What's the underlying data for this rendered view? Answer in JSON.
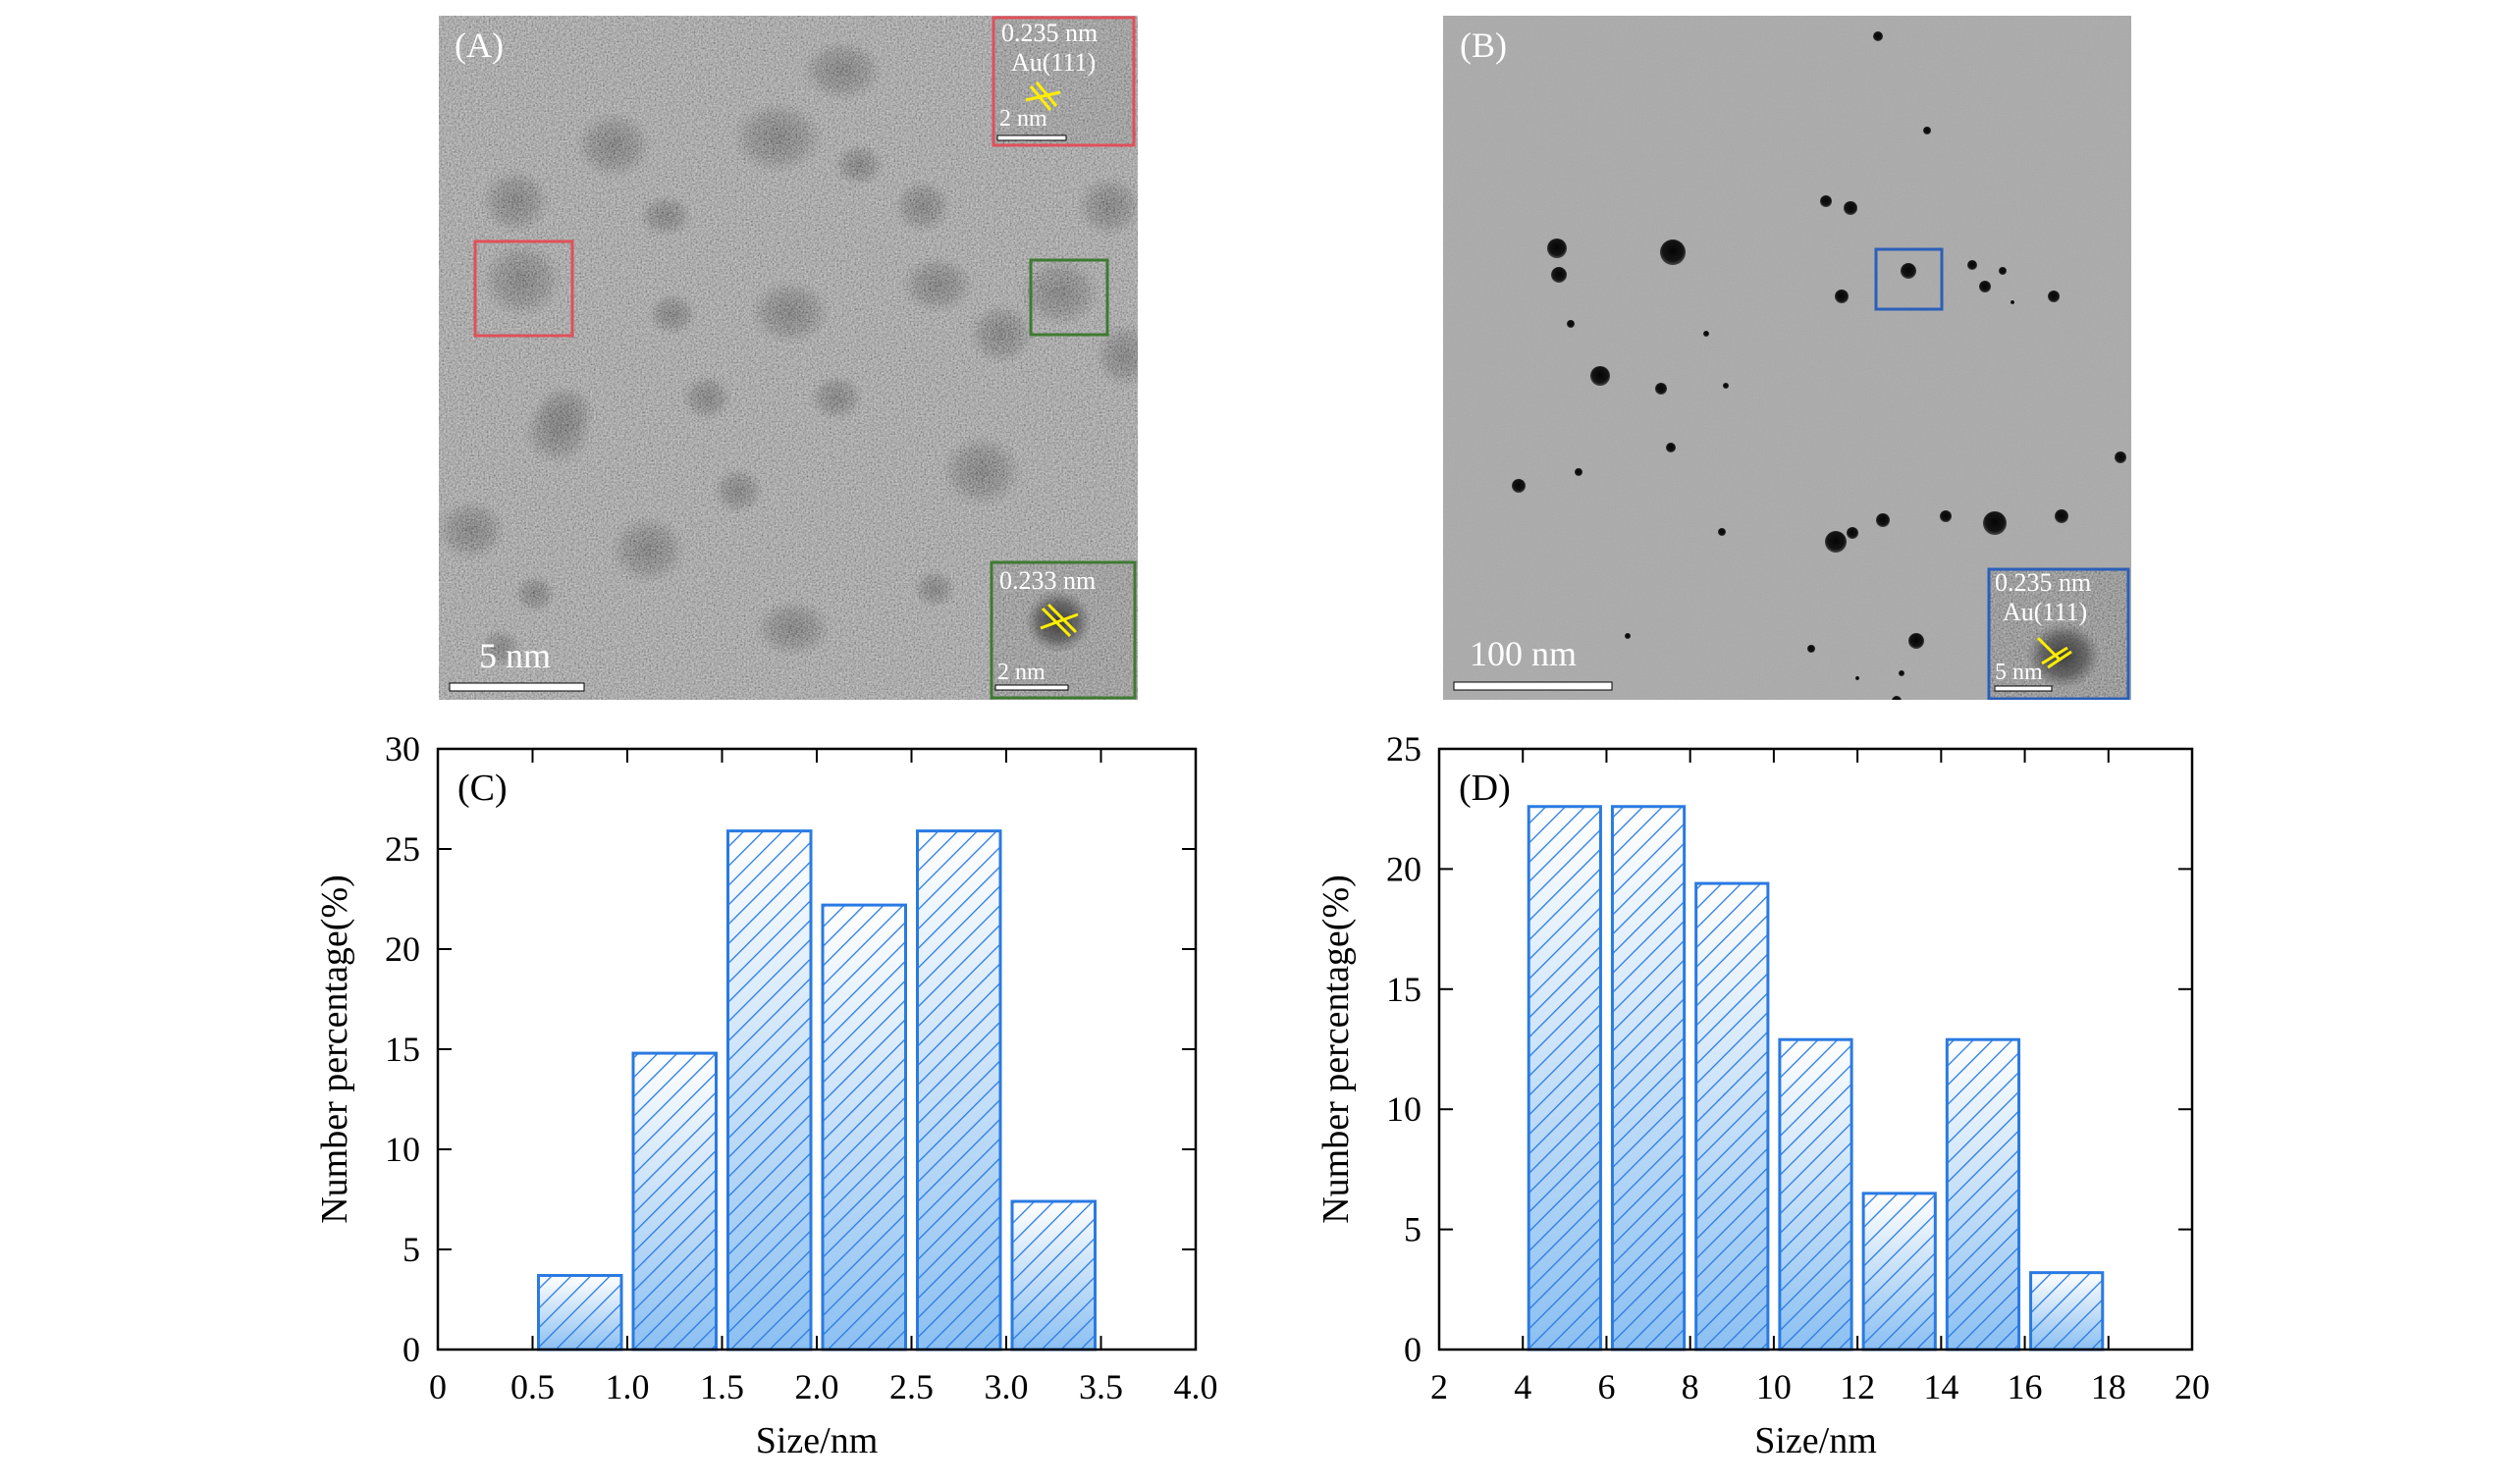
{
  "panels": {
    "A": {
      "label": "(A)",
      "scale_bar": "5 nm",
      "inset_top": {
        "spacing": "0.235 nm",
        "plane": "Au(111)",
        "scale_bar": "2 nm"
      },
      "inset_bottom": {
        "spacing": "0.233 nm",
        "scale_bar": "2 nm"
      }
    },
    "B": {
      "label": "(B)",
      "scale_bar": "100 nm",
      "inset": {
        "spacing": "0.235 nm",
        "plane": "Au(111)",
        "scale_bar": "5 nm"
      }
    }
  },
  "colors": {
    "bar_stroke": "#2a7ae2",
    "bar_fill_top": "#ffffff",
    "bar_fill_bottom": "#8cc0f2",
    "red_box": "#e0505a",
    "green_box": "#3f7a32",
    "blue_box": "#2a5fb8",
    "lattice_marker": "#ffee00"
  },
  "chart_data": [
    {
      "panel": "(C)",
      "type": "bar",
      "title": "",
      "xlabel": "Size/nm",
      "ylabel": "Number percentage(%)",
      "xlim": [
        0,
        4.0
      ],
      "ylim": [
        0,
        30
      ],
      "xticks": [
        "0",
        "0.5",
        "1.0",
        "1.5",
        "2.0",
        "2.5",
        "3.0",
        "3.5",
        "4.0"
      ],
      "yticks": [
        "0",
        "5",
        "10",
        "15",
        "20",
        "25",
        "30"
      ],
      "bin_width": 0.5,
      "bins": [
        {
          "x": 0.75,
          "value": 3.7
        },
        {
          "x": 1.25,
          "value": 14.8
        },
        {
          "x": 1.75,
          "value": 25.9
        },
        {
          "x": 2.25,
          "value": 22.2
        },
        {
          "x": 2.75,
          "value": 25.9
        },
        {
          "x": 3.25,
          "value": 7.4
        }
      ]
    },
    {
      "panel": "(D)",
      "type": "bar",
      "title": "",
      "xlabel": "Size/nm",
      "ylabel": "Number percentage(%)",
      "xlim": [
        2,
        20
      ],
      "ylim": [
        0,
        25
      ],
      "xticks": [
        "2",
        "4",
        "6",
        "8",
        "10",
        "12",
        "14",
        "16",
        "18",
        "20"
      ],
      "yticks": [
        "0",
        "5",
        "10",
        "15",
        "20",
        "25"
      ],
      "bin_width": 2,
      "bins": [
        {
          "x": 5,
          "value": 22.6
        },
        {
          "x": 7,
          "value": 22.6
        },
        {
          "x": 9,
          "value": 19.4
        },
        {
          "x": 11,
          "value": 12.9
        },
        {
          "x": 13,
          "value": 6.5
        },
        {
          "x": 15,
          "value": 12.9
        },
        {
          "x": 17,
          "value": 3.2
        }
      ]
    }
  ]
}
